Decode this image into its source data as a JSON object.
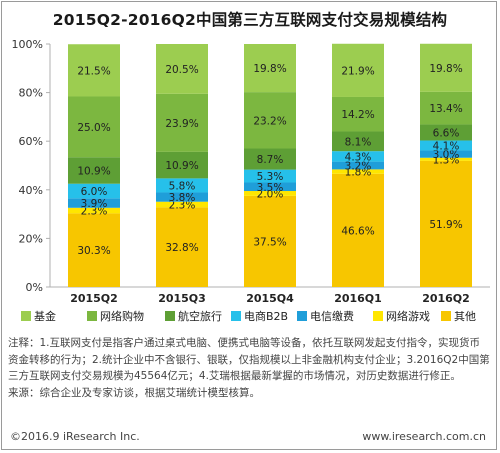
{
  "title": "2015Q2-2016Q2中国第三方互联网支付交易规模结构",
  "chart_data": {
    "type": "bar",
    "stacked": true,
    "categories": [
      "2015Q2",
      "2015Q3",
      "2015Q4",
      "2016Q1",
      "2016Q2"
    ],
    "y_ticks": [
      "0%",
      "20%",
      "40%",
      "60%",
      "80%",
      "100%"
    ],
    "ylim": [
      0,
      100
    ],
    "grid": false,
    "legend_position": "bottom",
    "series": [
      {
        "name": "其他",
        "color": "#f7c600",
        "values": [
          30.3,
          32.8,
          37.5,
          46.6,
          51.9
        ],
        "labels": [
          "30.3%",
          "32.8%",
          "37.5%",
          "46.6%",
          "51.9%"
        ]
      },
      {
        "name": "网络游戏",
        "color": "#ffe600",
        "values": [
          2.3,
          2.3,
          2.0,
          1.8,
          1.3
        ],
        "labels": [
          "2.3%",
          "2.3%",
          "2.0%",
          "1.8%",
          "1.3%"
        ]
      },
      {
        "name": "电信缴费",
        "color": "#1f9ed9",
        "values": [
          3.9,
          3.8,
          3.5,
          3.2,
          3.0
        ],
        "labels": [
          "3.9%",
          "3.8%",
          "3.5%",
          "3.2%",
          "3.0%"
        ]
      },
      {
        "name": "电商B2B",
        "color": "#26c0ea",
        "values": [
          6.0,
          5.8,
          5.3,
          4.3,
          4.1
        ],
        "labels": [
          "6.0%",
          "5.8%",
          "5.3%",
          "4.3%",
          "4.1%"
        ]
      },
      {
        "name": "航空旅行",
        "color": "#5e9f35",
        "values": [
          10.9,
          10.9,
          8.7,
          8.1,
          6.6
        ],
        "labels": [
          "10.9%",
          "10.9%",
          "8.7%",
          "8.1%",
          "6.6%"
        ]
      },
      {
        "name": "网络购物",
        "color": "#7cb740",
        "values": [
          25.0,
          23.9,
          23.2,
          14.2,
          13.4
        ],
        "labels": [
          "25.0%",
          "23.9%",
          "23.2%",
          "14.2%",
          "13.4%"
        ]
      },
      {
        "name": "基金",
        "color": "#9ccd50",
        "values": [
          21.5,
          20.5,
          19.8,
          21.9,
          19.8
        ],
        "labels": [
          "21.5%",
          "20.5%",
          "19.8%",
          "21.9%",
          "19.8%"
        ]
      }
    ],
    "legend_order": [
      "基金",
      "网络购物",
      "航空旅行",
      "电商B2B",
      "电信缴费",
      "网络游戏",
      "其他"
    ]
  },
  "notes": [
    "注释：1.互联网支付是指客户通过桌式电脑、便携式电脑等设备，依托互联网发起支付指令，实现货币",
    "资金转移的行为；2.统计企业中不含银行、银联，仅指规模以上非金融机构支付企业；3.2016Q2中国第",
    "三方互联网支付交易规模为45564亿元；4.艾瑞根据最新掌握的市场情况，对历史数据进行修正。",
    "来源：综合企业及专家访谈，根据艾瑞统计模型核算。"
  ],
  "footer": {
    "copyright": "©2016.9 iResearch Inc.",
    "website": "www.iresearch.com.cn"
  }
}
